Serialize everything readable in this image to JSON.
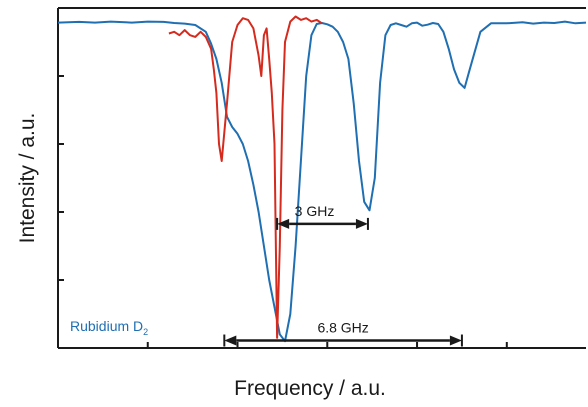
{
  "chart_data": {
    "type": "line",
    "xlabel": "Frequency / a.u.",
    "ylabel": "Intensity / a.u.",
    "xlim": [
      0,
      100
    ],
    "ylim": [
      0,
      100
    ],
    "grid": false,
    "legend": "bottom-left",
    "label": {
      "main": "Rubidium D",
      "subscript": "2"
    },
    "colors": {
      "blue": "#1f6fb2",
      "red": "#d42b1e",
      "axis": "#1a1a1a"
    },
    "series": [
      {
        "id": "blue",
        "x": [
          0,
          4,
          7,
          10,
          14,
          17,
          20,
          22,
          24,
          26,
          28,
          29,
          30,
          31,
          32,
          33,
          34,
          35,
          36,
          37,
          38,
          39,
          40,
          41,
          42,
          43,
          44,
          45,
          46,
          47,
          48,
          49,
          50,
          51,
          52,
          53,
          54,
          55,
          56,
          57,
          58,
          59,
          60,
          61,
          62,
          63,
          64,
          65,
          66,
          67,
          68,
          69,
          70,
          71,
          72,
          73,
          74,
          75,
          76,
          77,
          78,
          80,
          82,
          85,
          88,
          90,
          92,
          94,
          96,
          98,
          100
        ],
        "y": [
          95.7,
          95.9,
          95.7,
          96.0,
          95.7,
          96.0,
          95.9,
          95.6,
          95.4,
          95.0,
          93.0,
          89.5,
          85.0,
          78.0,
          68.0,
          65.0,
          63.0,
          60.0,
          55.0,
          48.0,
          40.0,
          30.0,
          20.0,
          12.0,
          4.0,
          2.0,
          10.0,
          30.0,
          55.0,
          80.0,
          92.0,
          95.3,
          95.6,
          95.2,
          94.5,
          93.0,
          90.0,
          85.0,
          72.0,
          55.0,
          43.0,
          40.5,
          50.0,
          78.0,
          92.0,
          95.0,
          95.5,
          95.0,
          94.5,
          95.5,
          95.7,
          94.8,
          95.1,
          95.6,
          95.3,
          93.0,
          88.0,
          82.0,
          78.0,
          76.5,
          82.0,
          93.0,
          95.5,
          95.5,
          95.8,
          95.4,
          95.7,
          95.6,
          96.0,
          95.5,
          95.7
        ]
      },
      {
        "id": "red",
        "x": [
          21,
          22,
          23,
          24,
          25,
          26,
          27,
          28,
          29,
          29.5,
          30,
          30.5,
          31,
          32,
          33,
          34,
          35,
          36,
          37,
          38,
          38.5,
          39,
          39.5,
          40,
          40.5,
          41,
          41.5,
          42,
          42.5,
          43,
          44,
          45,
          46,
          47,
          48,
          49,
          50
        ],
        "y": [
          92.5,
          93.0,
          92.0,
          93.5,
          92.0,
          91.5,
          93.0,
          91.5,
          88.0,
          82.0,
          75.0,
          60.0,
          55.0,
          72.0,
          90.0,
          95.0,
          97.0,
          96.5,
          94.0,
          86.0,
          80.0,
          92.0,
          94.0,
          85.0,
          75.0,
          60.0,
          3.0,
          30.0,
          70.0,
          90.0,
          96.0,
          97.5,
          96.5,
          97.0,
          96.0,
          96.5,
          95.5
        ]
      }
    ],
    "annotations": [
      {
        "text": "3 GHz",
        "x1": 41.5,
        "x2": 58.7,
        "y": 36.5
      },
      {
        "text": "6.8 GHz",
        "x1": 31.5,
        "x2": 76.5,
        "y": 2.2
      }
    ]
  }
}
